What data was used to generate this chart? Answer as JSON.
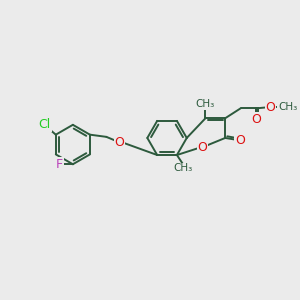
{
  "bg_color": "#ebebeb",
  "bond_color": "#2d5a3d",
  "bond_width": 1.4,
  "cl_color": "#22cc22",
  "f_color": "#bb44bb",
  "o_color": "#dd1111",
  "font_size": 8.5,
  "fig_size": [
    3.0,
    3.0
  ],
  "dpi": 100,
  "xlim": [
    -1.0,
    12.0
  ],
  "ylim": [
    0.0,
    10.5
  ]
}
